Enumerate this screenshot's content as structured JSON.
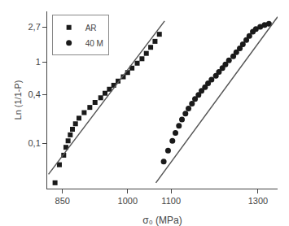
{
  "chart_data": {
    "type": "scatter",
    "xlabel": "σ₀ (MPa)",
    "ylabel": "Ln (1/1-P)",
    "xlim": [
      815,
      1345
    ],
    "ylim": [
      0.028,
      4.2
    ],
    "xticks": [
      850,
      1000,
      1100,
      1300
    ],
    "yticks": [
      {
        "value": 0.1,
        "label": "0,1"
      },
      {
        "value": 0.4,
        "label": "0,4"
      },
      1,
      {
        "value": 2.7,
        "label": "2,7"
      }
    ],
    "log": "y",
    "grid": false,
    "legend": "upper left",
    "series": [
      {
        "name": "AR",
        "type": "scatter",
        "marker": "square",
        "color": "#1a1a1a",
        "x": [
          833,
          843,
          853,
          858,
          863,
          868,
          873,
          880,
          888,
          900,
          913,
          925,
          938,
          948,
          958,
          968,
          978,
          990,
          1000,
          1010,
          1022,
          1033,
          1043,
          1053,
          1063,
          1073
        ],
        "values": [
          0.033,
          0.055,
          0.072,
          0.09,
          0.108,
          0.128,
          0.15,
          0.175,
          0.205,
          0.24,
          0.278,
          0.32,
          0.365,
          0.415,
          0.465,
          0.52,
          0.585,
          0.66,
          0.745,
          0.845,
          0.97,
          1.1,
          1.28,
          1.52,
          1.8,
          2.2
        ]
      },
      {
        "name": "40 M",
        "type": "scatter",
        "marker": "circle",
        "color": "#1a1a1a",
        "x": [
          1083,
          1093,
          1103,
          1110,
          1118,
          1125,
          1133,
          1140,
          1148,
          1155,
          1163,
          1170,
          1178,
          1185,
          1193,
          1203,
          1210,
          1218,
          1225,
          1233,
          1243,
          1250,
          1258,
          1265,
          1273,
          1280,
          1288,
          1295,
          1305,
          1315,
          1325
        ],
        "values": [
          0.06,
          0.082,
          0.108,
          0.135,
          0.165,
          0.198,
          0.233,
          0.27,
          0.31,
          0.352,
          0.396,
          0.443,
          0.493,
          0.548,
          0.608,
          0.68,
          0.758,
          0.845,
          0.94,
          1.05,
          1.18,
          1.32,
          1.48,
          1.66,
          1.87,
          2.1,
          2.36,
          2.55,
          2.72,
          2.85,
          2.95
        ]
      },
      {
        "type": "line",
        "line_style": "solid",
        "color": "#555555",
        "x": [
          818,
          1085
        ],
        "values": [
          0.042,
          3.2
        ]
      },
      {
        "type": "line",
        "line_style": "solid",
        "color": "#555555",
        "x": [
          1065,
          1345
        ],
        "values": [
          0.033,
          3.6
        ]
      }
    ]
  }
}
